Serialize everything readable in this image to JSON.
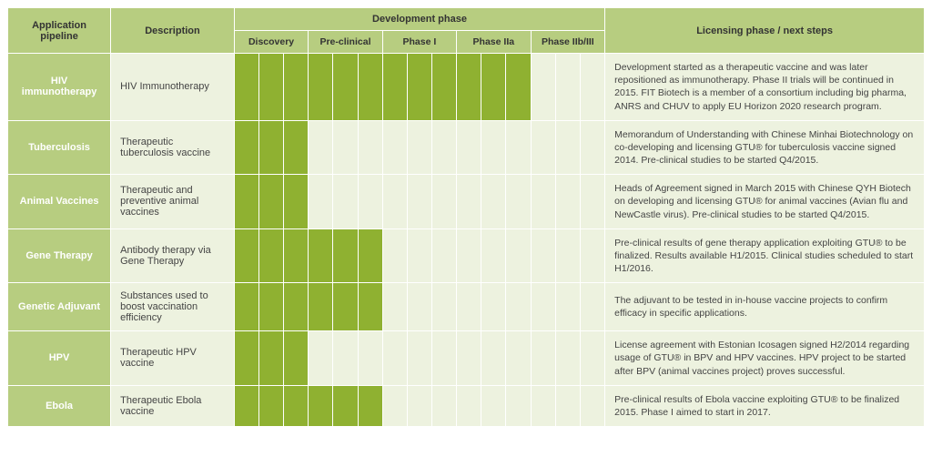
{
  "headers": {
    "pipeline": "Application pipeline",
    "description": "Description",
    "dev_phase": "Development phase",
    "licensing": "Licensing phase / next steps",
    "phases": [
      "Discovery",
      "Pre-clinical",
      "Phase I",
      "Phase IIa",
      "Phase IIb/III"
    ]
  },
  "phase_subcells": 3,
  "colors": {
    "header_bg": "#b7cd80",
    "light_bg": "#edf2df",
    "fill_bg": "#8fb131",
    "border": "#ffffff",
    "pipeline_text": "#ffffff"
  },
  "rows": [
    {
      "pipeline": "HIV immunotherapy",
      "description": "HIV Immunotherapy",
      "progress": [
        3,
        3,
        3,
        3,
        0
      ],
      "licensing": "Development started as a therapeutic vaccine and was later repositioned as immunotherapy. Phase II trials will be continued in 2015. FIT Biotech is a member of a consortium including big pharma, ANRS and CHUV to apply EU Horizon 2020 research program."
    },
    {
      "pipeline": "Tuberculosis",
      "description": "Therapeutic tuberculosis vaccine",
      "progress": [
        3,
        0,
        0,
        0,
        0
      ],
      "licensing": "Memorandum of Understanding with Chinese Minhai Biotechnology on co-developing and licensing GTU® for tuberculosis vaccine signed 2014. Pre-clinical studies to be started Q4/2015."
    },
    {
      "pipeline": "Animal Vaccines",
      "description": "Therapeutic and preventive animal vaccines",
      "progress": [
        3,
        0,
        0,
        0,
        0
      ],
      "licensing": "Heads of Agreement signed in March 2015 with Chinese QYH Biotech on developing and licensing GTU® for animal vaccines (Avian flu and NewCastle virus). Pre-clinical studies to be started Q4/2015."
    },
    {
      "pipeline": "Gene Therapy",
      "description": "Antibody therapy via Gene Therapy",
      "progress": [
        3,
        3,
        0,
        0,
        0
      ],
      "licensing": "Pre-clinical results of gene therapy application exploiting GTU® to be finalized. Results available H1/2015. Clinical studies scheduled to start H1/2016."
    },
    {
      "pipeline": "Genetic Adjuvant",
      "description": "Substances used to boost vaccination efficiency",
      "progress": [
        3,
        3,
        0,
        0,
        0
      ],
      "licensing": "The adjuvant to be tested in in-house vaccine projects to confirm efficacy in specific applications."
    },
    {
      "pipeline": "HPV",
      "description": "Therapeutic HPV vaccine",
      "progress": [
        3,
        0,
        0,
        0,
        0
      ],
      "licensing": "License agreement with Estonian Icosagen signed H2/2014 regarding usage of GTU® in BPV and HPV vaccines. HPV project to be started after BPV (animal vaccines project) proves successful."
    },
    {
      "pipeline": "Ebola",
      "description": "Therapeutic Ebola vaccine",
      "progress": [
        3,
        3,
        0,
        0,
        0
      ],
      "licensing": "Pre-clinical results of Ebola vaccine exploiting GTU® to be finalized 2015. Phase I aimed to start in 2017."
    }
  ]
}
